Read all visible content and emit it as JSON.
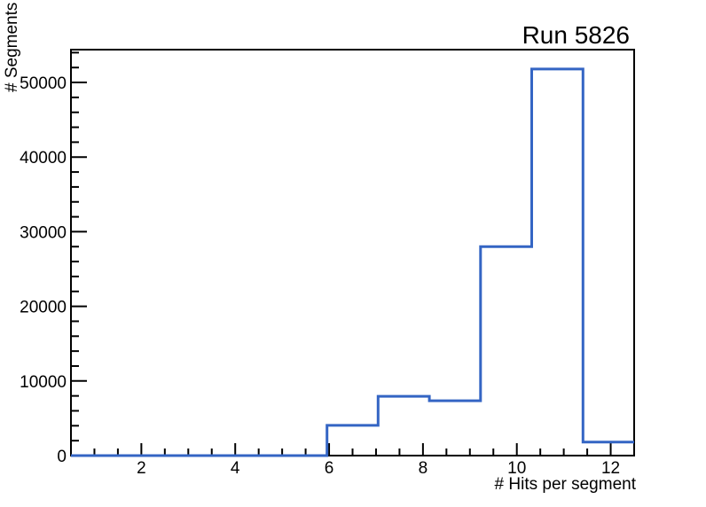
{
  "chart_data": {
    "type": "histogram",
    "title": "Run 5826",
    "x_axis": {
      "label": "# Hits per segment",
      "range": [
        0.5,
        12.5
      ],
      "major_ticks": [
        2,
        4,
        6,
        8,
        10,
        12
      ],
      "major_tick_labels": [
        "2",
        "4",
        "6",
        "8",
        "10",
        "12"
      ],
      "minor_tick_step": 0.5
    },
    "y_axis": {
      "label": "# Segments",
      "range": [
        0,
        54400
      ],
      "major_ticks": [
        0,
        10000,
        20000,
        30000,
        40000,
        50000
      ],
      "major_tick_labels": [
        "0",
        "10000",
        "20000",
        "30000",
        "40000",
        "50000"
      ],
      "minor_tick_step": 2000
    },
    "bin_edges": [
      0.5,
      1.591,
      2.682,
      3.773,
      4.864,
      5.955,
      7.045,
      8.136,
      9.227,
      10.318,
      11.409,
      12.5
    ],
    "counts": [
      0,
      0,
      0,
      0,
      0,
      4050,
      7950,
      7350,
      28000,
      51800,
      1800
    ],
    "grid": false,
    "legend": null,
    "colors": {
      "line": "#3465c4",
      "frame": "#000000",
      "text": "#000000",
      "background": "#ffffff"
    }
  }
}
